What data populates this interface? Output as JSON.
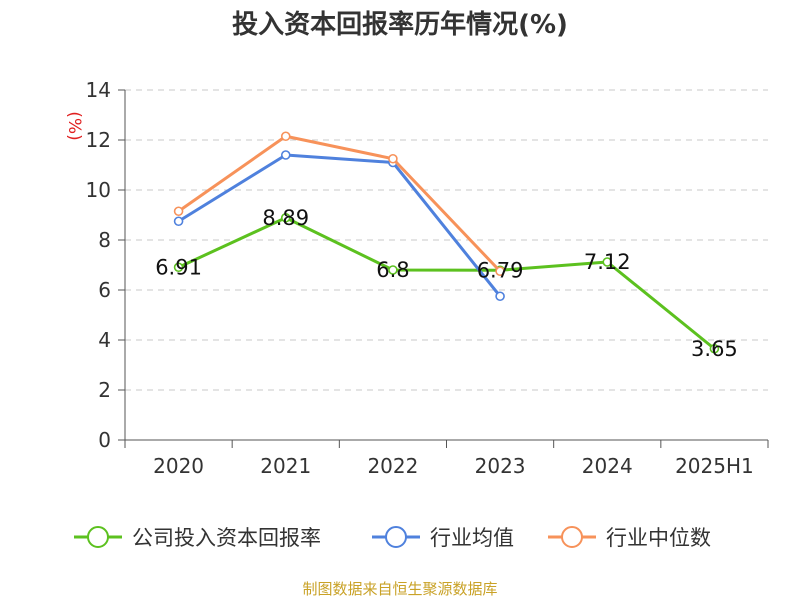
{
  "chart_data": {
    "type": "line",
    "title": "投入资本回报率历年情况(%)",
    "y_unit": "(%)",
    "categories": [
      "2020",
      "2021",
      "2022",
      "2023",
      "2024",
      "2025H1"
    ],
    "ylim": [
      0,
      14
    ],
    "y_ticks": [
      0,
      2,
      4,
      6,
      8,
      10,
      12,
      14
    ],
    "grid": true,
    "legend_position": "bottom",
    "series": [
      {
        "name": "公司投入资本回报率",
        "color": "#5cc11f",
        "values": [
          6.91,
          8.89,
          6.8,
          6.79,
          7.12,
          3.65
        ],
        "labels": [
          "6.91",
          "8.89",
          "6.8",
          "6.79",
          "7.12",
          "3.65"
        ]
      },
      {
        "name": "行业均值",
        "color": "#4f81dd",
        "values": [
          8.75,
          11.4,
          11.1,
          5.75,
          null,
          null
        ]
      },
      {
        "name": "行业中位数",
        "color": "#f7925a",
        "values": [
          9.15,
          12.15,
          11.25,
          6.75,
          null,
          null
        ]
      }
    ],
    "source": "制图数据来自恒生聚源数据库"
  }
}
